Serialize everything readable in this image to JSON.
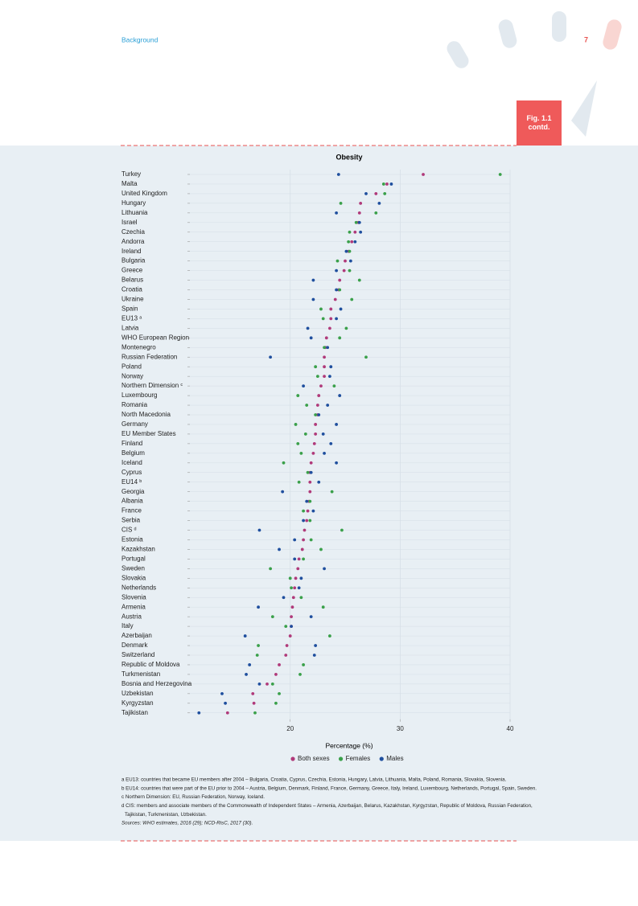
{
  "header": {
    "section": "Background",
    "page": "7",
    "figure_label": "Fig. 1.1 contd."
  },
  "chart_data": {
    "type": "dot",
    "title": "Obesity",
    "x_label": "Percentage (%)",
    "categories": [
      "Turkey",
      "Malta",
      "United Kingdom",
      "Hungary",
      "Lithuania",
      "Israel",
      "Czechia",
      "Andorra",
      "Ireland",
      "Bulgaria",
      "Greece",
      "Belarus",
      "Croatia",
      "Ukraine",
      "Spain",
      "EU13 ᵃ",
      "Latvia",
      "WHO European Region",
      "Montenegro",
      "Russian Federation",
      "Poland",
      "Norway",
      "Northern Dimension ᶜ",
      "Luxembourg",
      "Romania",
      "North Macedonia",
      "Germany",
      "EU Member States",
      "Finland",
      "Belgium",
      "Iceland",
      "Cyprus",
      "EU14 ᵇ",
      "Georgia",
      "Albania",
      "France",
      "Serbia",
      "CIS ᵈ",
      "Estonia",
      "Kazakhstan",
      "Portugal",
      "Sweden",
      "Slovakia",
      "Netherlands",
      "Slovenia",
      "Armenia",
      "Austria",
      "Italy",
      "Azerbaijan",
      "Denmark",
      "Switzerland",
      "Republic of Moldova",
      "Turkmenistan",
      "Bosnia and Herzegovina",
      "Uzbekistan",
      "Kyrgyzstan",
      "Tajikistan"
    ],
    "series": [
      {
        "name": "Both sexes",
        "color": "#b03a7a",
        "values": [
          32.1,
          28.8,
          27.8,
          26.4,
          26.3,
          26.2,
          25.9,
          25.6,
          25.3,
          25.0,
          24.9,
          24.5,
          24.4,
          24.1,
          23.7,
          23.7,
          23.6,
          23.3,
          23.2,
          23.1,
          23.1,
          23.1,
          22.8,
          22.6,
          22.5,
          22.5,
          22.3,
          22.3,
          22.2,
          22.1,
          21.9,
          21.8,
          21.8,
          21.8,
          21.7,
          21.6,
          21.5,
          21.3,
          21.2,
          21.1,
          20.8,
          20.7,
          20.5,
          20.4,
          20.3,
          20.2,
          20.1,
          20.1,
          20.0,
          19.7,
          19.6,
          19.0,
          18.7,
          17.9,
          16.6,
          16.7,
          14.3
        ]
      },
      {
        "name": "Females",
        "color": "#3aa04a",
        "values": [
          39.1,
          28.5,
          28.6,
          24.6,
          27.8,
          26.0,
          25.4,
          25.3,
          25.4,
          24.3,
          25.4,
          26.3,
          24.5,
          25.6,
          22.8,
          23.0,
          25.1,
          24.5,
          23.1,
          26.9,
          22.3,
          22.5,
          24.0,
          20.7,
          21.5,
          22.3,
          20.5,
          21.4,
          20.7,
          21.0,
          19.4,
          21.6,
          20.8,
          23.8,
          21.8,
          21.2,
          21.8,
          24.7,
          21.9,
          22.8,
          21.2,
          18.2,
          20.0,
          20.1,
          21.0,
          23.0,
          18.4,
          19.6,
          23.6,
          17.1,
          17.0,
          21.2,
          20.9,
          18.4,
          19.0,
          18.7,
          16.8
        ]
      },
      {
        "name": "Males",
        "color": "#1f4f9e",
        "values": [
          24.4,
          29.2,
          26.9,
          28.1,
          24.2,
          26.3,
          26.4,
          25.9,
          25.1,
          25.5,
          24.2,
          22.1,
          24.2,
          22.1,
          24.6,
          24.2,
          21.6,
          21.9,
          23.4,
          18.2,
          23.7,
          23.6,
          21.2,
          24.5,
          23.4,
          22.6,
          24.2,
          23.0,
          23.7,
          23.1,
          24.2,
          21.9,
          22.6,
          19.3,
          21.5,
          22.1,
          21.2,
          17.2,
          20.4,
          19.0,
          20.4,
          23.1,
          21.0,
          20.8,
          19.4,
          17.1,
          21.9,
          20.1,
          15.9,
          22.3,
          22.2,
          16.3,
          16.0,
          17.2,
          13.8,
          14.1,
          11.7
        ]
      }
    ],
    "xlim": [
      10.8,
      40
    ],
    "xticks": [
      20,
      30,
      40
    ],
    "grid": true
  },
  "notes": [
    "a EU13: countries that became EU members after 2004 – Bulgaria, Croatia, Cyprus, Czechia, Estonia, Hungary, Latvia, Lithuania, Malta, Poland, Romania, Slovakia, Slovenia.",
    "b EU14: countries that were part of the EU prior to 2004 – Austria, Belgium, Denmark, Finland, France, Germany, Greece, Italy, Ireland, Luxembourg, Netherlands, Portugal, Spain, Sweden.",
    "c Northern Dimension: EU, Russian Federation, Norway, Iceland.",
    "d CIS: members and associate members of the Commonwealth of Independent States – Armenia, Azerbaijan, Belarus, Kazakhstan, Kyrgyzstan, Republic of Moldova, Russian Federation,",
    "Tajikistan, Turkmenistan, Uzbekistan.",
    "Sources: WHO estimates, 2016 (29); NCD-RisC, 2017 (30)."
  ]
}
